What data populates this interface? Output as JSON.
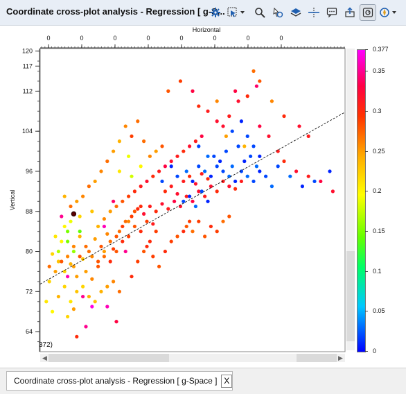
{
  "window": {
    "title": "Coordinate cross-plot analysis - Regression [ g-S...",
    "tab_label": "Coordinate cross-plot analysis - Regression [ g-Space ]",
    "tab_close": "X"
  },
  "toolbar": {
    "icons": [
      "gear-icon",
      "select-dropdown-icon",
      "zoom-icon",
      "pan-icon",
      "layers-icon",
      "crosshair-icon",
      "chat-icon",
      "export-icon",
      "legend-icon",
      "compass-icon"
    ]
  },
  "plot_overlay": {
    "clipped_text": "372)"
  },
  "chart_data": {
    "type": "scatter",
    "xlabel": "Horizontal",
    "ylabel": "Vertical",
    "x_tick_labels": [
      "0",
      "0",
      "0",
      "0",
      "0",
      "0",
      "0",
      "0"
    ],
    "y_ticks": [
      120,
      117,
      112,
      104,
      96,
      88,
      80,
      72,
      64
    ],
    "ylim": [
      60,
      120.5
    ],
    "xlim": [
      0,
      100
    ],
    "grid": false,
    "regression_line": {
      "x": [
        0,
        100
      ],
      "y": [
        73.5,
        107.8
      ],
      "style": "dashed"
    },
    "colorbar": {
      "min": 0,
      "max": 0.377,
      "tick_labels": [
        "0",
        "0.05",
        "0.1",
        "0.15",
        "0.2",
        "0.25",
        "0.3",
        "0.35",
        "0.377"
      ],
      "tick_values": [
        0,
        0.05,
        0.1,
        0.15,
        0.2,
        0.25,
        0.3,
        0.35,
        0.377
      ]
    },
    "points": [
      [
        4,
        79.5,
        0.22
      ],
      [
        6,
        78,
        0.23
      ],
      [
        8,
        76,
        0.22
      ],
      [
        10,
        77.5,
        0.24
      ],
      [
        12,
        75,
        0.25
      ],
      [
        14,
        78.5,
        0.23
      ],
      [
        7,
        82,
        0.2
      ],
      [
        9,
        84,
        0.15
      ],
      [
        11,
        81,
        0.26
      ],
      [
        13,
        83,
        0.24
      ],
      [
        16,
        80,
        0.27
      ],
      [
        18,
        82.5,
        0.25
      ],
      [
        20,
        81,
        0.28
      ],
      [
        22,
        83.5,
        0.26
      ],
      [
        24,
        80.5,
        0.29
      ],
      [
        26,
        84,
        0.27
      ],
      [
        15,
        76,
        0.25
      ],
      [
        17,
        74.5,
        0.26
      ],
      [
        19,
        77,
        0.28
      ],
      [
        21,
        79,
        0.27
      ],
      [
        23,
        78,
        0.3
      ],
      [
        25,
        80,
        0.28
      ],
      [
        27,
        82,
        0.3
      ],
      [
        29,
        83,
        0.29
      ],
      [
        31,
        85,
        0.28
      ],
      [
        33,
        84,
        0.3
      ],
      [
        35,
        86,
        0.29
      ],
      [
        37,
        85.5,
        0.31
      ],
      [
        28,
        86,
        0.27
      ],
      [
        30,
        87,
        0.29
      ],
      [
        32,
        88.5,
        0.3
      ],
      [
        34,
        87.5,
        0.32
      ],
      [
        36,
        89,
        0.31
      ],
      [
        38,
        88,
        0.3
      ],
      [
        40,
        89.5,
        0.32
      ],
      [
        42,
        88.5,
        0.31
      ],
      [
        44,
        90,
        0.33
      ],
      [
        46,
        89,
        0.32
      ],
      [
        48,
        91,
        0.31
      ],
      [
        50,
        90,
        0.33
      ],
      [
        52,
        92,
        0.32
      ],
      [
        54,
        91,
        0.31
      ],
      [
        56,
        93,
        0.32
      ],
      [
        58,
        92,
        0.3
      ],
      [
        60,
        94,
        0.31
      ],
      [
        62,
        93,
        0.32
      ],
      [
        64,
        92.5,
        0.3
      ],
      [
        66,
        94,
        0.31
      ],
      [
        41,
        92,
        0.3
      ],
      [
        43,
        93,
        0.31
      ],
      [
        45,
        91.5,
        0.32
      ],
      [
        47,
        94,
        0.31
      ],
      [
        49,
        95,
        0.3
      ],
      [
        51,
        93.5,
        0.32
      ],
      [
        53,
        95.5,
        0.31
      ],
      [
        55,
        94.5,
        0.3
      ],
      [
        45,
        95,
        0.02
      ],
      [
        48,
        96,
        0.03
      ],
      [
        50,
        94,
        0.01
      ],
      [
        52,
        97,
        0.02
      ],
      [
        54,
        96,
        0.03
      ],
      [
        56,
        95,
        0.01
      ],
      [
        58,
        97,
        0.02
      ],
      [
        60,
        96,
        0.02
      ],
      [
        62,
        95,
        0.03
      ],
      [
        64,
        94,
        0.01
      ],
      [
        66,
        96,
        0.02
      ],
      [
        68,
        95,
        0.03
      ],
      [
        70,
        94,
        0.02
      ],
      [
        72,
        96,
        0.01
      ],
      [
        74,
        95,
        0.02
      ],
      [
        76,
        93,
        0.03
      ],
      [
        57,
        99,
        0.02
      ],
      [
        59,
        98,
        0.01
      ],
      [
        61,
        100,
        0.02
      ],
      [
        63,
        97,
        0.03
      ],
      [
        65,
        101,
        0.02
      ],
      [
        67,
        98,
        0.01
      ],
      [
        69,
        99,
        0.02
      ],
      [
        71,
        97,
        0.03
      ],
      [
        47,
        90,
        0.02
      ],
      [
        49,
        91,
        0.01
      ],
      [
        51,
        89,
        0.03
      ],
      [
        53,
        92,
        0.02
      ],
      [
        55,
        90,
        0.01
      ],
      [
        63,
        104,
        0.02
      ],
      [
        66,
        106,
        0.01
      ],
      [
        68,
        103,
        0.02
      ],
      [
        70,
        101,
        0.02
      ],
      [
        72,
        99,
        0.01
      ],
      [
        78,
        97,
        0.02
      ],
      [
        82,
        95,
        0.03
      ],
      [
        86,
        93,
        0.01
      ],
      [
        90,
        94,
        0.02
      ],
      [
        95,
        96,
        0.01
      ],
      [
        40,
        94,
        0.02
      ],
      [
        43,
        97,
        0.01
      ],
      [
        52,
        101,
        0.02
      ],
      [
        55,
        99,
        0.03
      ],
      [
        30,
        75,
        0.3
      ],
      [
        32,
        78,
        0.29
      ],
      [
        34,
        80,
        0.28
      ],
      [
        36,
        82,
        0.3
      ],
      [
        38,
        84,
        0.29
      ],
      [
        26,
        72,
        0.27
      ],
      [
        24,
        74,
        0.26
      ],
      [
        22,
        73,
        0.25
      ],
      [
        20,
        72,
        0.24
      ],
      [
        18,
        70,
        0.23
      ],
      [
        16,
        71,
        0.24
      ],
      [
        14,
        73,
        0.22
      ],
      [
        12,
        72,
        0.23
      ],
      [
        10,
        70,
        0.21
      ],
      [
        8,
        73,
        0.22
      ],
      [
        6,
        71,
        0.24
      ],
      [
        3,
        74,
        0.22
      ],
      [
        2,
        70,
        0.21
      ],
      [
        4,
        68,
        0.2
      ],
      [
        9,
        67,
        0.22
      ],
      [
        11,
        68.5,
        0.25
      ],
      [
        5,
        83,
        0.21
      ],
      [
        8,
        85,
        0.2
      ],
      [
        10,
        86,
        0.19
      ],
      [
        13,
        87,
        0.22
      ],
      [
        17,
        88,
        0.23
      ],
      [
        19,
        85,
        0.24
      ],
      [
        21,
        86.5,
        0.26
      ],
      [
        23,
        88,
        0.25
      ],
      [
        25,
        89,
        0.27
      ],
      [
        27,
        90,
        0.28
      ],
      [
        29,
        91,
        0.29
      ],
      [
        31,
        92,
        0.3
      ],
      [
        33,
        93,
        0.31
      ],
      [
        35,
        94,
        0.32
      ],
      [
        37,
        95,
        0.3
      ],
      [
        39,
        96,
        0.31
      ],
      [
        41,
        97,
        0.33
      ],
      [
        43,
        98,
        0.32
      ],
      [
        45,
        99,
        0.31
      ],
      [
        47,
        100,
        0.3
      ],
      [
        49,
        101,
        0.32
      ],
      [
        51,
        102,
        0.31
      ],
      [
        53,
        103,
        0.33
      ],
      [
        60,
        105,
        0.32
      ],
      [
        62,
        107,
        0.31
      ],
      [
        65,
        110,
        0.32
      ],
      [
        68,
        111,
        0.3
      ],
      [
        72,
        105,
        0.33
      ],
      [
        75,
        103,
        0.32
      ],
      [
        78,
        100,
        0.31
      ],
      [
        80,
        98,
        0.3
      ],
      [
        84,
        96,
        0.32
      ],
      [
        88,
        95,
        0.31
      ],
      [
        92,
        94,
        0.33
      ],
      [
        96,
        92,
        0.32
      ],
      [
        36,
        99,
        0.26
      ],
      [
        38,
        100,
        0.25
      ],
      [
        40,
        101,
        0.28
      ],
      [
        34,
        102,
        0.27
      ],
      [
        30,
        103,
        0.29
      ],
      [
        28,
        105,
        0.26
      ],
      [
        32,
        106,
        0.27
      ],
      [
        26,
        102,
        0.24
      ],
      [
        24,
        100,
        0.25
      ],
      [
        22,
        98,
        0.27
      ],
      [
        20,
        96,
        0.26
      ],
      [
        18,
        94,
        0.25
      ],
      [
        16,
        93,
        0.27
      ],
      [
        14,
        91,
        0.26
      ],
      [
        12,
        90,
        0.25
      ],
      [
        10,
        89,
        0.27
      ],
      [
        8,
        91,
        0.24
      ],
      [
        42,
        112,
        0.28
      ],
      [
        46,
        114,
        0.29
      ],
      [
        50,
        112,
        0.33
      ],
      [
        52,
        109,
        0.3
      ],
      [
        55,
        108,
        0.31
      ],
      [
        58,
        106,
        0.32
      ],
      [
        70,
        116,
        0.27
      ],
      [
        72,
        114,
        0.28
      ],
      [
        76,
        110,
        0.26
      ],
      [
        80,
        107,
        0.3
      ],
      [
        85,
        105,
        0.32
      ],
      [
        88,
        103,
        0.31
      ],
      [
        48,
        85,
        0.28
      ],
      [
        50,
        84,
        0.27
      ],
      [
        52,
        86,
        0.29
      ],
      [
        54,
        83,
        0.28
      ],
      [
        56,
        85,
        0.3
      ],
      [
        58,
        84,
        0.29
      ],
      [
        60,
        86,
        0.27
      ],
      [
        62,
        87,
        0.28
      ],
      [
        35,
        81,
        0.3
      ],
      [
        37,
        79,
        0.29
      ],
      [
        39,
        77,
        0.28
      ],
      [
        41,
        80,
        0.3
      ],
      [
        43,
        82,
        0.29
      ],
      [
        45,
        83,
        0.28
      ],
      [
        47,
        84,
        0.3
      ],
      [
        49,
        86,
        0.29
      ],
      [
        7,
        87,
        0.35
      ],
      [
        9,
        75,
        0.36
      ],
      [
        14,
        71,
        0.35
      ],
      [
        17,
        69,
        0.37
      ],
      [
        21,
        85,
        0.36
      ],
      [
        24,
        90,
        0.34
      ],
      [
        28,
        80,
        0.35
      ],
      [
        6,
        80,
        0.17
      ],
      [
        9,
        82,
        0.15
      ],
      [
        11,
        80,
        0.16
      ],
      [
        13,
        84,
        0.14
      ],
      [
        30,
        95,
        0.18
      ],
      [
        33,
        97,
        0.2
      ],
      [
        26,
        96,
        0.21
      ],
      [
        29,
        99,
        0.19
      ],
      [
        22,
        69,
        0.36
      ],
      [
        25,
        66,
        0.33
      ],
      [
        15,
        65,
        0.35
      ],
      [
        12,
        63,
        0.3
      ],
      [
        64,
        112,
        0.33
      ],
      [
        71,
        113,
        0.34
      ],
      [
        58,
        110,
        0.26
      ],
      [
        61,
        103,
        0.25
      ],
      [
        67,
        101,
        0.24
      ],
      [
        3,
        77,
        0.27
      ],
      [
        5,
        76,
        0.25
      ],
      [
        7,
        78,
        0.28
      ],
      [
        9,
        79,
        0.26
      ],
      [
        11,
        77,
        0.25
      ],
      [
        13,
        79,
        0.28
      ],
      [
        15,
        81,
        0.27
      ],
      [
        17,
        79,
        0.26
      ],
      [
        19,
        78,
        0.28
      ],
      [
        21,
        80,
        0.25
      ],
      [
        23,
        82,
        0.27
      ],
      [
        25,
        83,
        0.28
      ],
      [
        27,
        85,
        0.29
      ],
      [
        29,
        86,
        0.26
      ],
      [
        31,
        88,
        0.28
      ],
      [
        33,
        89,
        0.3
      ]
    ]
  }
}
